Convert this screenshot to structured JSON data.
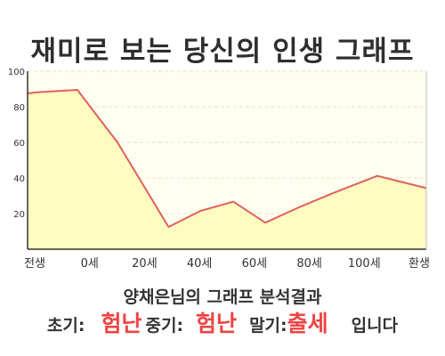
{
  "header": {
    "title": "재미로 보는 당신의 인생 그래프"
  },
  "chart_data": {
    "type": "area",
    "y_ticks": [
      20,
      40,
      60,
      80,
      100
    ],
    "ylim": [
      0,
      100
    ],
    "x_ticks": [
      "전생",
      "0세",
      "20세",
      "40세",
      "60세",
      "80세",
      "100세",
      "환생"
    ],
    "x": [
      -21.7,
      -18,
      -3.5,
      11.2,
      29.9,
      41.5,
      53.6,
      65.3,
      77.1,
      89.7,
      106.3,
      124.2
    ],
    "y": [
      87.5,
      88.2,
      89.5,
      60,
      12.5,
      21.5,
      26.7,
      14.9,
      23.2,
      31.3,
      41.2,
      34.3
    ],
    "xlim": [
      -21.7,
      124.2
    ],
    "grid": true,
    "colors": {
      "line": "#e06060",
      "fill": "#fefcc0",
      "plot_bg": "#fffff0",
      "grid": "#e6e6c8"
    }
  },
  "result": {
    "subtitle": "양채은님의 그래프 분석결과",
    "early_label": "초기:",
    "early_value": "험난",
    "middle_label": "중기:",
    "middle_value": "험난",
    "late_label": "말기:",
    "late_value": "출세",
    "suffix": "입니다"
  }
}
